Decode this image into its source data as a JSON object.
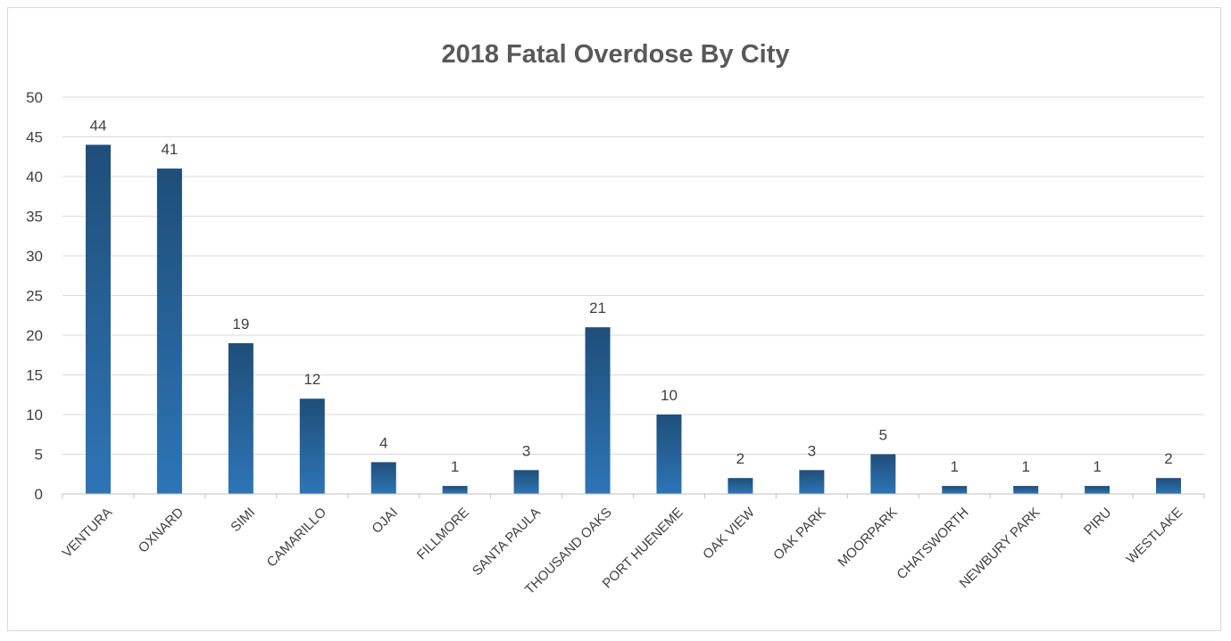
{
  "chart_data": {
    "type": "bar",
    "title": "2018 Fatal Overdose By City",
    "xlabel": "",
    "ylabel": "",
    "categories": [
      "VENTURA",
      "OXNARD",
      "SIMI",
      "CAMARILLO",
      "OJAI",
      "FILLMORE",
      "SANTA PAULA",
      "THOUSAND OAKS",
      "PORT HUENEME",
      "OAK VIEW",
      "OAK PARK",
      "MOORPARK",
      "CHATSWORTH",
      "NEWBURY PARK",
      "PIRU",
      "WESTLAKE"
    ],
    "values": [
      44,
      41,
      19,
      12,
      4,
      1,
      3,
      21,
      10,
      2,
      3,
      5,
      1,
      1,
      1,
      2
    ],
    "data_labels": [
      "44",
      "41",
      "19",
      "12",
      "4",
      "1",
      "3",
      "21",
      "10",
      "2",
      "3",
      "5",
      "1",
      "1",
      "1",
      "2"
    ],
    "ylim": [
      0,
      50
    ],
    "yticks": [
      "0",
      "5",
      "10",
      "15",
      "20",
      "25",
      "30",
      "35",
      "40",
      "45",
      "50"
    ],
    "grid": true,
    "legend": "none",
    "colors": {
      "bar_top": "#1f4e79",
      "bar_bottom": "#2e75b6",
      "grid": "#d9d9d9",
      "axis": "#bfbfbf",
      "text": "#404040",
      "title": "#595959"
    }
  }
}
